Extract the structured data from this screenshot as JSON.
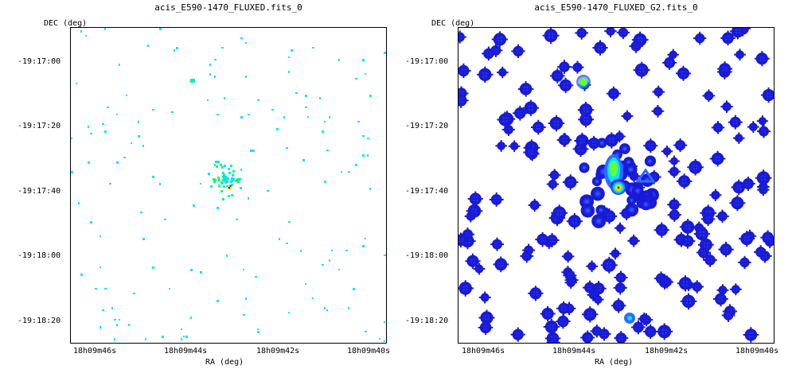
{
  "chart_data": [
    {
      "type": "heatmap",
      "title": "acis_E590-1470_FLUXED.fits_0",
      "xlabel": "RA (deg)",
      "ylabel": "DEC (deg)",
      "x_ticks": [
        "18h09m46s",
        "18h09m44s",
        "18h09m42s",
        "18h09m40s"
      ],
      "y_ticks": [
        "-19:17:00",
        "-19:17:20",
        "-19:17:40",
        "-19:18:00",
        "-19:18:20"
      ],
      "grid": false,
      "colormap": [
        "#ffffff",
        "#00e6ff",
        "#00ff66",
        "#ffee00",
        "#ff2200",
        "#000000"
      ],
      "description_of_content": "sparse single-pixel event map with a compact cluster near 18h09m43s, -19:17:35",
      "source": {
        "ra_label": "18h09m43s",
        "dec_label": "-19:17:35"
      }
    },
    {
      "type": "heatmap",
      "title": "acis_E590-1470_FLUXED_G2.fits_0",
      "xlabel": "RA (deg)",
      "ylabel": "DEC (deg)",
      "x_ticks": [
        "18h09m46s",
        "18h09m44s",
        "18h09m42s",
        "18h09m40s"
      ],
      "y_ticks": [
        "-19:17:00",
        "-19:17:20",
        "-19:17:40",
        "-19:18:00",
        "-19:18:20"
      ],
      "grid": false,
      "colormap": [
        "#ffffff",
        "#1a1ad6",
        "#2f6bff",
        "#00e6ff",
        "#66ff33",
        "#ffee00",
        "#ff2200",
        "#000000"
      ],
      "source": {
        "ra_label": "18h09m43s",
        "dec_label": "-19:17:35"
      }
    }
  ]
}
